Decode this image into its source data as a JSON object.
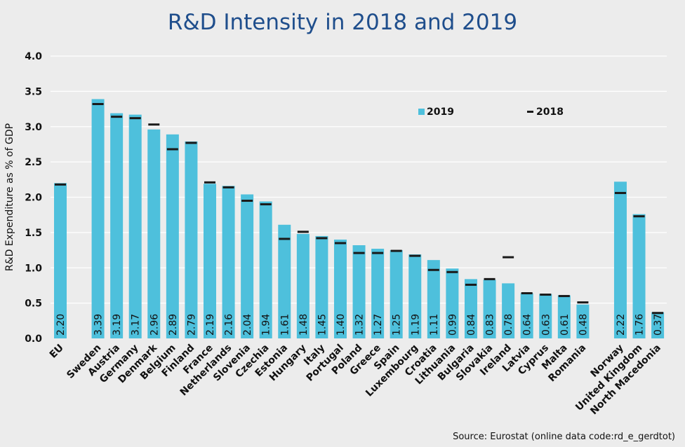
{
  "chart_data": {
    "type": "bar",
    "title": "R&D Intensity in 2018 and 2019",
    "ylabel": "R&D Expenditure as % of GDP",
    "xlabel": "",
    "ylim": [
      0,
      4.0
    ],
    "yticks": [
      "0.0",
      "0.5",
      "1.0",
      "1.5",
      "2.0",
      "2.5",
      "3.0",
      "3.5",
      "4.0"
    ],
    "grid": true,
    "legend_position": "top-right",
    "categories": [
      "EU",
      "Sweden",
      "Austria",
      "Germany",
      "Denmark",
      "Belgium",
      "Finland",
      "France",
      "Netherlands",
      "Slovenia",
      "Czechia",
      "Estonia",
      "Hungary",
      "Italy",
      "Portugal",
      "Poland",
      "Greece",
      "Spain",
      "Luxembourg",
      "Croatia",
      "Lithuania",
      "Bulgaria",
      "Slovakia",
      "Ireland",
      "Latvia",
      "Cyprus",
      "Malta",
      "Romania",
      "Norway",
      "United Kingdom",
      "North Macedonia"
    ],
    "series": [
      {
        "name": "2019",
        "color": "#4ec0dc",
        "style": "bar",
        "values": [
          2.2,
          3.39,
          3.19,
          3.17,
          2.96,
          2.89,
          2.79,
          2.19,
          2.16,
          2.04,
          1.94,
          1.61,
          1.48,
          1.45,
          1.4,
          1.32,
          1.27,
          1.25,
          1.19,
          1.11,
          0.99,
          0.84,
          0.83,
          0.78,
          0.64,
          0.63,
          0.61,
          0.48,
          2.22,
          1.76,
          0.37
        ],
        "labels": [
          "2.20",
          "3.39",
          "3.19",
          "3.17",
          "2.96",
          "2.89",
          "2.79",
          "2.19",
          "2.16",
          "2.04",
          "1.94",
          "1.61",
          "1.48",
          "1.45",
          "1.40",
          "1.32",
          "1.27",
          "1.25",
          "1.19",
          "1.11",
          "0.99",
          "0.84",
          "0.83",
          "0.78",
          "0.64",
          "0.63",
          "0.61",
          "0.48",
          "2.22",
          "1.76",
          "0.37"
        ]
      },
      {
        "name": "2018",
        "color": "#1a1a1a",
        "style": "marker",
        "values": [
          2.18,
          3.32,
          3.14,
          3.12,
          3.03,
          2.68,
          2.77,
          2.21,
          2.14,
          1.95,
          1.9,
          1.41,
          1.51,
          1.42,
          1.35,
          1.21,
          1.21,
          1.24,
          1.17,
          0.97,
          0.94,
          0.76,
          0.84,
          1.15,
          0.64,
          0.62,
          0.6,
          0.51,
          2.06,
          1.73,
          0.36
        ]
      }
    ],
    "groups": [
      [
        0,
        0
      ],
      [
        1,
        27
      ],
      [
        28,
        30
      ]
    ],
    "source": "Source: Eurostat (online  data code:rd_e_gerdtot)"
  }
}
